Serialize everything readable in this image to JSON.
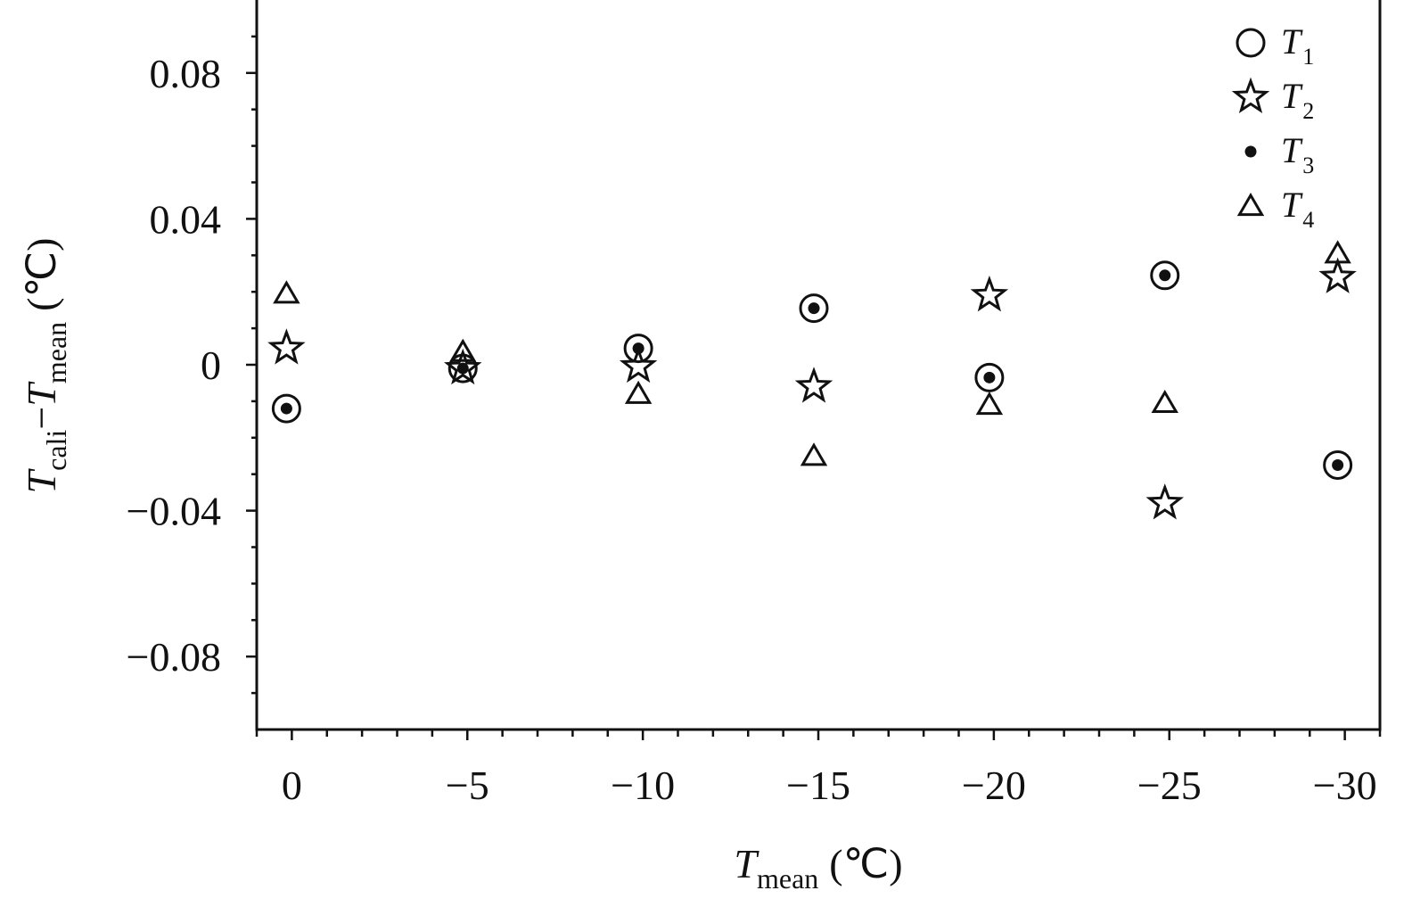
{
  "chart_data": {
    "type": "scatter",
    "title": "",
    "xlabel": {
      "main": "T",
      "sub": "mean",
      "unit": "(℃)"
    },
    "ylabel": {
      "main1": "T",
      "sub1": "cali",
      "op": "−",
      "main2": "T",
      "sub2": "mean",
      "unit": "(℃)"
    },
    "x_reversed": true,
    "xlim": [
      1,
      -31
    ],
    "ylim": [
      -0.1,
      0.1
    ],
    "x_ticks": [
      0,
      -5,
      -10,
      -15,
      -20,
      -25,
      -30
    ],
    "x_tick_labels": [
      "0",
      "−5",
      "−10",
      "−15",
      "−20",
      "−25",
      "−30"
    ],
    "y_ticks": [
      0.08,
      0.04,
      0,
      -0.04,
      -0.08
    ],
    "y_tick_labels": [
      "0.08",
      "0.04",
      "0",
      "−0.04",
      "−0.08"
    ],
    "grid": false,
    "legend_position": "top-right",
    "series": [
      {
        "name": "T",
        "sub": "1",
        "marker": "circle",
        "x": [
          0,
          -5,
          -10,
          -15,
          -20,
          -25,
          -30
        ],
        "y": [
          -0.012,
          -0.001,
          0.0045,
          0.0155,
          -0.0035,
          0.0245,
          -0.0275
        ]
      },
      {
        "name": "T",
        "sub": "2",
        "marker": "star",
        "x": [
          0,
          -5,
          -10,
          -15,
          -20,
          -25,
          -30
        ],
        "y": [
          0.0045,
          -0.001,
          -0.0005,
          -0.006,
          0.019,
          -0.038,
          0.024
        ]
      },
      {
        "name": "T",
        "sub": "3",
        "marker": "dot",
        "x": [
          0,
          -5,
          -10,
          -15,
          -20,
          -25,
          -30
        ],
        "y": [
          -0.012,
          -0.001,
          0.0045,
          0.0155,
          -0.0035,
          0.0245,
          -0.0275
        ]
      },
      {
        "name": "T",
        "sub": "4",
        "marker": "triangle",
        "x": [
          0,
          -5,
          -10,
          -15,
          -20,
          -25,
          -30
        ],
        "y": [
          0.0195,
          0.0035,
          -0.008,
          -0.025,
          -0.011,
          -0.0105,
          0.0305
        ]
      }
    ]
  }
}
